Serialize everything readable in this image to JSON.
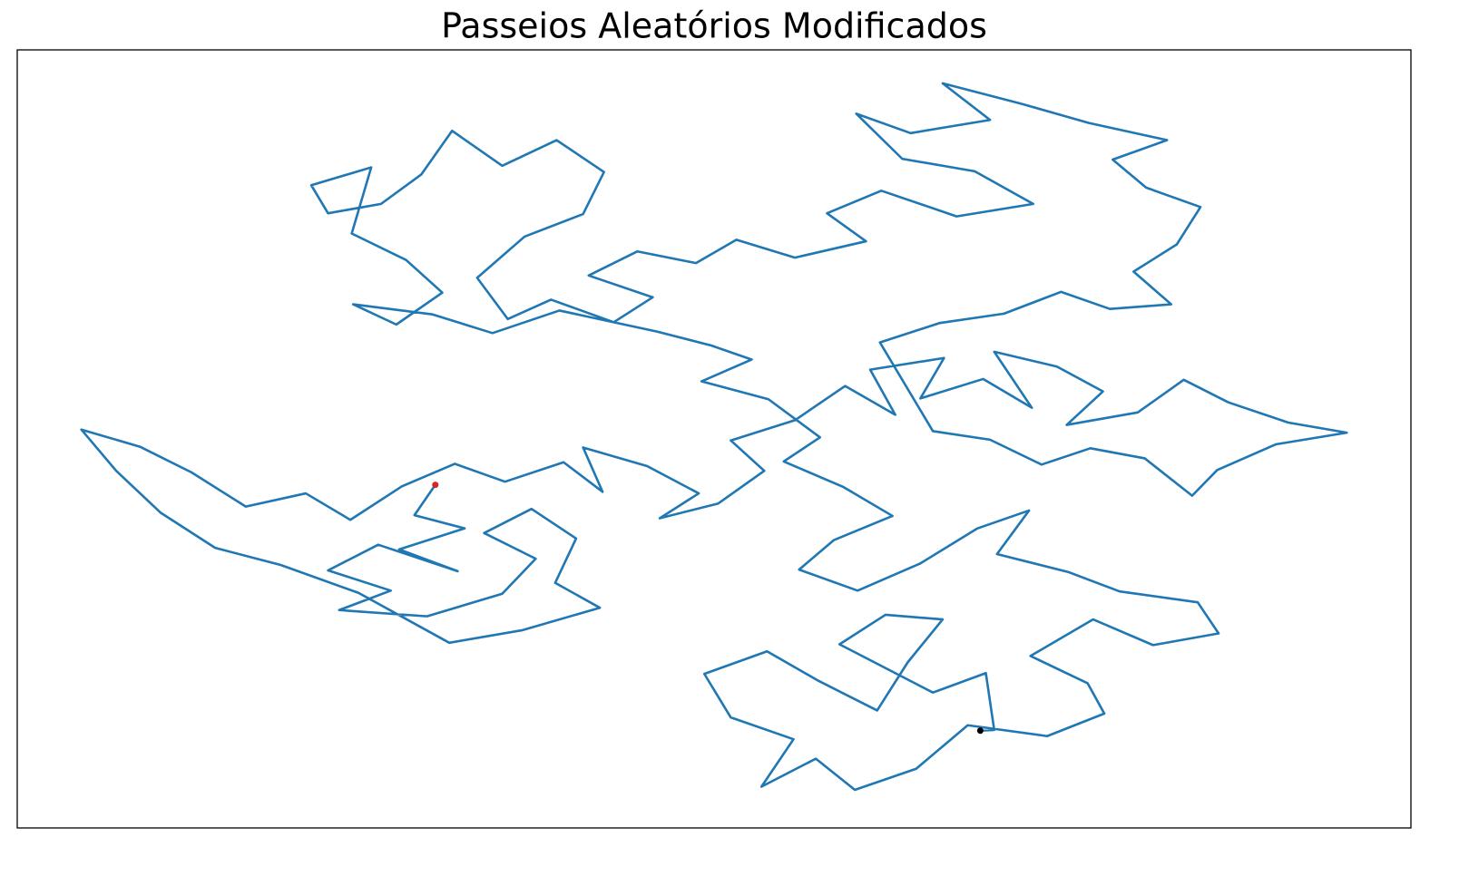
{
  "chart_data": {
    "type": "line",
    "title": "Passeios Aleatórios Modificados",
    "xlim": [
      0,
      100
    ],
    "ylim": [
      0,
      100
    ],
    "series": [
      {
        "color": "#1f77b4",
        "marker": false,
        "x": [
          30.0,
          28.5,
          32.1,
          27.4,
          31.6,
          25.9,
          22.3,
          26.8,
          23.1,
          29.4,
          34.8,
          37.2,
          33.5,
          36.9,
          40.1,
          38.6,
          41.8,
          36.2,
          31.0,
          24.5,
          18.9,
          14.2,
          10.3,
          7.1,
          4.6,
          8.8,
          12.5,
          16.4,
          20.7,
          23.9,
          27.6,
          31.4,
          35.0,
          39.2,
          42.0,
          40.6,
          45.2,
          48.9,
          46.1,
          50.3,
          53.6,
          51.2,
          55.8,
          59.4,
          63.0,
          61.2,
          66.5,
          64.8,
          69.3,
          72.8,
          70.1,
          74.6,
          77.9,
          75.3,
          80.4,
          83.7,
          86.9,
          91.2,
          95.4,
          90.3,
          86.1,
          84.3,
          80.9,
          77.0,
          73.5,
          69.8,
          65.7,
          61.9,
          66.2,
          70.8,
          74.9,
          78.4,
          82.8,
          80.1,
          83.2,
          84.9,
          81.0,
          78.6,
          82.5,
          76.9,
          72.0,
          66.4,
          69.8,
          64.1,
          60.2,
          63.5,
          68.7,
          72.9,
          67.4,
          62.0,
          58.1,
          60.9,
          55.8,
          51.6,
          48.7,
          44.5,
          41.0,
          45.6,
          42.8,
          38.3,
          35.2,
          33.0,
          36.4,
          40.6,
          42.1,
          38.7,
          34.8,
          31.2,
          29.0,
          26.1,
          22.3,
          21.1,
          25.4,
          24.0,
          27.9,
          30.5,
          27.2,
          24.1,
          29.8,
          34.1,
          38.9,
          45.9,
          49.8,
          52.7,
          49.1,
          53.9,
          57.6,
          55.0,
          59.3,
          62.8,
          58.6,
          56.1,
          60.3,
          64.8,
          68.9,
          72.6,
          70.3,
          75.4,
          79.1,
          84.7,
          86.2,
          81.5,
          77.2,
          72.7,
          76.8,
          78.0,
          73.9,
          68.2,
          64.5,
          60.1,
          57.3,
          53.4,
          55.7,
          51.2,
          49.3,
          53.8,
          57.5,
          61.7,
          63.9,
          66.4,
          62.3,
          59.0,
          65.7,
          69.5,
          70.1,
          69.1
        ],
        "values": [
          44.1,
          40.2,
          38.5,
          35.8,
          33.0,
          36.4,
          33.1,
          30.5,
          28.0,
          27.2,
          30.1,
          34.6,
          37.9,
          41.0,
          37.2,
          31.5,
          28.3,
          25.4,
          23.8,
          30.2,
          33.8,
          36.0,
          40.5,
          45.9,
          51.2,
          49.0,
          45.7,
          41.3,
          43.0,
          39.6,
          43.9,
          46.8,
          44.5,
          47.0,
          43.2,
          48.9,
          46.5,
          43.0,
          39.8,
          41.7,
          45.9,
          49.8,
          52.4,
          56.8,
          53.1,
          58.9,
          60.4,
          55.2,
          57.7,
          54.0,
          61.2,
          59.3,
          56.1,
          51.8,
          53.4,
          57.6,
          54.7,
          52.1,
          50.8,
          49.3,
          46.0,
          42.7,
          47.5,
          48.8,
          46.7,
          49.9,
          51.0,
          62.4,
          64.9,
          66.1,
          68.9,
          66.7,
          67.3,
          71.5,
          75.0,
          79.8,
          82.3,
          85.9,
          88.4,
          90.6,
          93.1,
          95.7,
          91.0,
          89.3,
          91.8,
          86.0,
          84.4,
          80.2,
          78.6,
          81.9,
          79.0,
          75.4,
          73.3,
          75.6,
          72.6,
          74.1,
          71.0,
          68.2,
          65.0,
          67.9,
          65.4,
          70.7,
          76.0,
          78.9,
          84.3,
          88.4,
          85.1,
          89.6,
          84.0,
          80.2,
          79.0,
          82.6,
          84.9,
          76.4,
          73.0,
          68.8,
          64.7,
          67.3,
          66.0,
          63.6,
          66.5,
          63.8,
          62.0,
          60.2,
          57.4,
          55.1,
          50.2,
          47.1,
          43.8,
          40.1,
          37.0,
          33.2,
          30.5,
          34.0,
          38.5,
          40.8,
          35.2,
          32.9,
          30.4,
          29.0,
          25.0,
          23.5,
          26.8,
          22.1,
          18.6,
          14.7,
          11.8,
          13.2,
          7.6,
          4.9,
          8.9,
          5.3,
          11.4,
          14.2,
          19.8,
          22.7,
          18.9,
          15.1,
          21.3,
          26.8,
          27.4,
          23.6,
          17.4,
          19.9,
          12.6,
          12.5
        ]
      },
      {
        "color": "#d62728",
        "marker": true,
        "x": [
          30.0
        ],
        "values": [
          44.1
        ]
      },
      {
        "color": "#000000",
        "marker": true,
        "x": [
          69.1
        ],
        "values": [
          12.5
        ]
      }
    ]
  }
}
